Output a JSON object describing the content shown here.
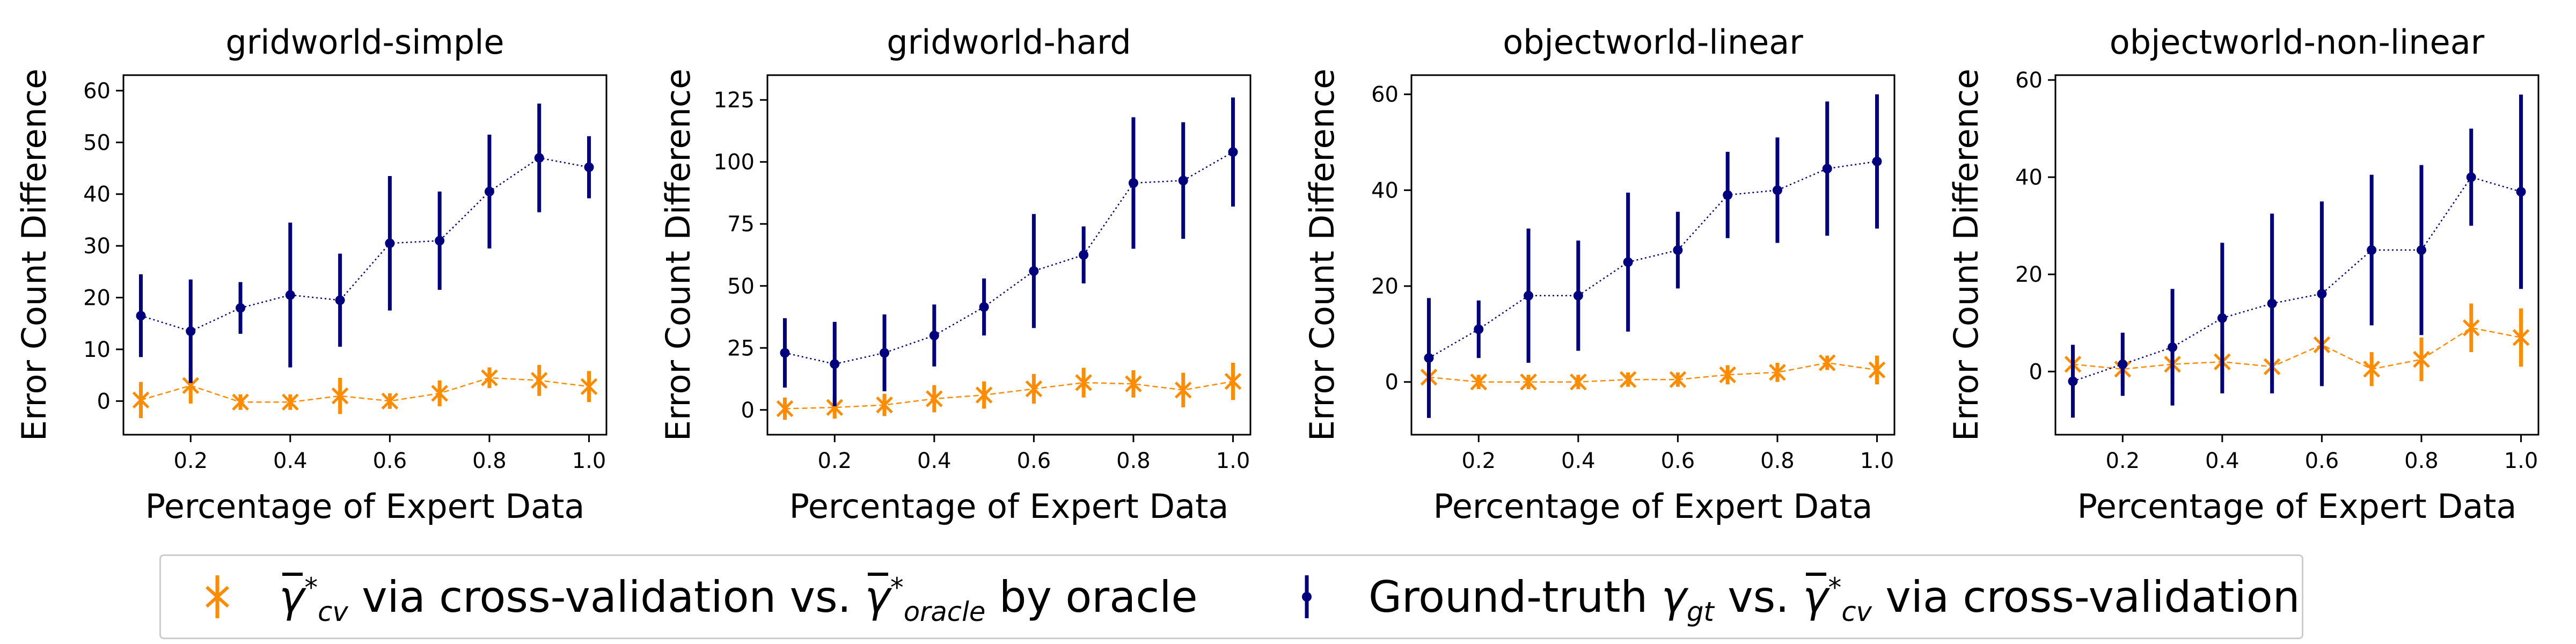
{
  "chart_data": [
    {
      "type": "line",
      "title": "gridworld-simple",
      "xlabel": "Percentage of Expert Data",
      "ylabel": "Error Count Difference",
      "x": [
        0.1,
        0.2,
        0.3,
        0.4,
        0.5,
        0.6,
        0.7,
        0.8,
        0.9,
        1.0
      ],
      "xticks": [
        "0.2",
        "0.4",
        "0.6",
        "0.8",
        "1.0"
      ],
      "yticks": [
        "0",
        "10",
        "20",
        "30",
        "40",
        "50",
        "60"
      ],
      "ylim": [
        -6.5,
        63
      ],
      "series": [
        {
          "values": [
            0.2,
            3.0,
            -0.2,
            -0.2,
            1.0,
            0.0,
            1.5,
            4.5,
            4.0,
            2.8
          ],
          "err": [
            3.5,
            3.5,
            1.5,
            1.5,
            3.5,
            1.5,
            2.5,
            2.0,
            3.0,
            3.0
          ]
        },
        {
          "values": [
            16.5,
            13.5,
            18.0,
            20.5,
            19.5,
            30.5,
            31.0,
            40.5,
            47.0,
            45.2
          ],
          "err": [
            8.0,
            10.0,
            5.0,
            14.0,
            9.0,
            13.0,
            9.5,
            11.0,
            10.5,
            6.0
          ]
        }
      ]
    },
    {
      "type": "line",
      "title": "gridworld-hard",
      "xlabel": "Percentage of Expert Data",
      "ylabel": "Error Count Difference",
      "x": [
        0.1,
        0.2,
        0.3,
        0.4,
        0.5,
        0.6,
        0.7,
        0.8,
        0.9,
        1.0
      ],
      "xticks": [
        "0.2",
        "0.4",
        "0.6",
        "0.8",
        "1.0"
      ],
      "yticks": [
        "0",
        "25",
        "50",
        "75",
        "100",
        "125"
      ],
      "ylim": [
        -10,
        135
      ],
      "series": [
        {
          "values": [
            0.5,
            1.0,
            2.0,
            4.5,
            6.0,
            8.5,
            11.0,
            10.5,
            8.0,
            11.5
          ],
          "err": [
            4.5,
            4.5,
            4.5,
            5.5,
            5.5,
            6.0,
            6.0,
            5.5,
            7.0,
            7.5
          ]
        },
        {
          "values": [
            23.0,
            18.5,
            23.0,
            30.0,
            41.5,
            56.0,
            62.5,
            91.5,
            92.5,
            104.0
          ],
          "err": [
            14.0,
            17.0,
            15.5,
            12.5,
            11.5,
            23.0,
            11.5,
            26.5,
            23.5,
            22.0
          ]
        }
      ]
    },
    {
      "type": "line",
      "title": "objectworld-linear",
      "xlabel": "Percentage of Expert Data",
      "ylabel": "Error Count Difference",
      "x": [
        0.1,
        0.2,
        0.3,
        0.4,
        0.5,
        0.6,
        0.7,
        0.8,
        0.9,
        1.0
      ],
      "xticks": [
        "0.2",
        "0.4",
        "0.6",
        "0.8",
        "1.0"
      ],
      "yticks": [
        "0",
        "20",
        "40",
        "60"
      ],
      "ylim": [
        -11,
        64
      ],
      "series": [
        {
          "values": [
            1.0,
            0.0,
            0.0,
            0.0,
            0.5,
            0.5,
            1.5,
            2.0,
            4.0,
            2.5
          ],
          "err": [
            1.5,
            1.5,
            1.5,
            1.5,
            1.5,
            1.5,
            2.0,
            2.0,
            1.5,
            3.0
          ]
        },
        {
          "values": [
            5.0,
            11.0,
            18.0,
            18.0,
            25.0,
            27.5,
            39.0,
            40.0,
            44.5,
            46.0
          ],
          "err": [
            12.5,
            6.0,
            14.0,
            11.5,
            14.5,
            8.0,
            9.0,
            11.0,
            14.0,
            14.0
          ]
        }
      ]
    },
    {
      "type": "line",
      "title": "objectworld-non-linear",
      "xlabel": "Percentage of Expert Data",
      "ylabel": "Error Count Difference",
      "x": [
        0.1,
        0.2,
        0.3,
        0.4,
        0.5,
        0.6,
        0.7,
        0.8,
        0.9,
        1.0
      ],
      "xticks": [
        "0.2",
        "0.4",
        "0.6",
        "0.8",
        "1.0"
      ],
      "yticks": [
        "0",
        "20",
        "40",
        "60"
      ],
      "ylim": [
        -13,
        61
      ],
      "series": [
        {
          "values": [
            1.5,
            0.5,
            1.5,
            2.0,
            1.0,
            5.5,
            0.5,
            2.5,
            9.0,
            7.0
          ],
          "err": [
            3.5,
            3.5,
            3.5,
            3.5,
            3.5,
            3.5,
            3.5,
            4.5,
            5.0,
            6.0
          ]
        },
        {
          "values": [
            -2.0,
            1.5,
            5.0,
            11.0,
            14.0,
            16.0,
            25.0,
            25.0,
            40.0,
            37.0
          ],
          "err": [
            7.5,
            6.5,
            12.0,
            15.5,
            18.5,
            19.0,
            15.5,
            17.5,
            10.0,
            20.0
          ]
        }
      ]
    }
  ],
  "colors": {
    "cv": "#ff8c00",
    "gt": "#00007f"
  },
  "legend": {
    "placement": "bottom-center",
    "cv": {
      "gamma": "γ",
      "sub": "cv",
      "sup": "*",
      "mid": " via cross-validation vs. ",
      "sub2": "oracle",
      "tail": " by oracle"
    },
    "gt": {
      "prefix": "Ground-truth ",
      "gamma": "γ",
      "sub": "gt",
      "mid": " vs. ",
      "sub2": "cv",
      "sup": "*",
      "tail": " via cross-validation"
    }
  }
}
